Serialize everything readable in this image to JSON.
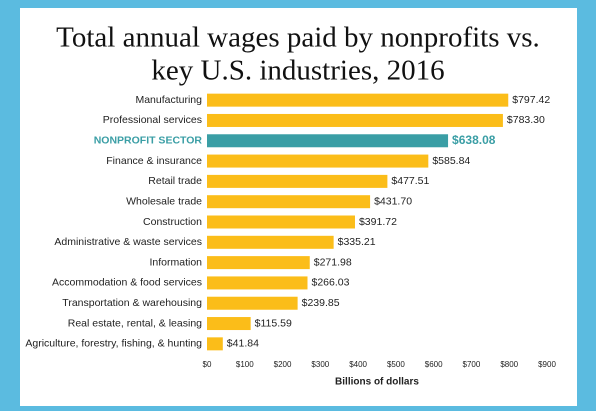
{
  "chart_data": {
    "type": "hbar",
    "title": [
      "Total annual wages paid by nonprofits vs.",
      "key U.S. industries, 2016"
    ],
    "categories": [
      "Manufacturing",
      "Professional services",
      "NONPROFIT SECTOR",
      "Finance & insurance",
      "Retail trade",
      "Wholesale trade",
      "Construction",
      "Administrative & waste services",
      "Information",
      "Accommodation & food services",
      "Transportation & warehousing",
      "Real estate, rental, & leasing",
      "Agriculture, forestry, fishing, & hunting"
    ],
    "values": [
      797.42,
      783.3,
      638.08,
      585.84,
      477.51,
      431.7,
      391.72,
      335.21,
      271.98,
      266.03,
      239.85,
      115.59,
      41.84
    ],
    "value_labels": [
      "$797.42",
      "$783.30",
      "$638.08",
      "$585.84",
      "$477.51",
      "$431.70",
      "$391.72",
      "$335.21",
      "$271.98",
      "$266.03",
      "$239.85",
      "$115.59",
      "$41.84"
    ],
    "color": "#fbbd19",
    "highlight": {
      "index": 2,
      "color": "#3a9ea5"
    },
    "xlabel": "Billions of dollars",
    "xlim": [
      0,
      900
    ],
    "xticks": [
      {
        "value": 0,
        "label": "$0"
      },
      {
        "value": 100,
        "label": "$100"
      },
      {
        "value": 200,
        "label": "$200"
      },
      {
        "value": 300,
        "label": "$300"
      },
      {
        "value": 400,
        "label": "$400"
      },
      {
        "value": 500,
        "label": "$500"
      },
      {
        "value": 600,
        "label": "$600"
      },
      {
        "value": 700,
        "label": "$700"
      },
      {
        "value": 800,
        "label": "$800"
      },
      {
        "value": 900,
        "label": "$900"
      }
    ],
    "grid": false
  }
}
